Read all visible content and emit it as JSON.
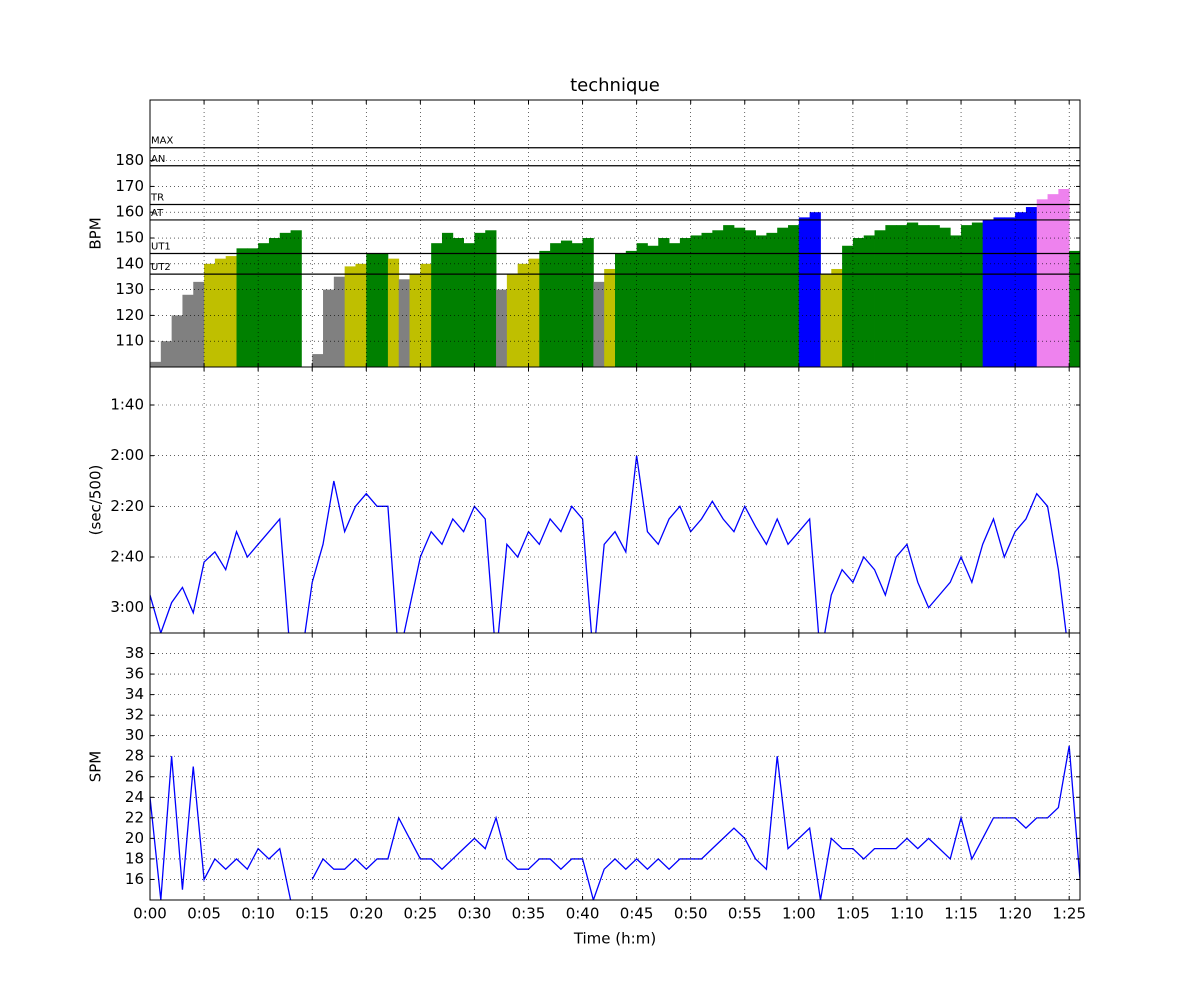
{
  "chart_data": {
    "type": "multi-panel",
    "title": "technique",
    "xlabel": "Time (h:m)",
    "x": [
      0,
      1,
      2,
      3,
      4,
      5,
      6,
      7,
      8,
      9,
      10,
      11,
      12,
      13,
      14,
      15,
      16,
      17,
      18,
      19,
      20,
      21,
      22,
      23,
      24,
      25,
      26,
      27,
      28,
      29,
      30,
      31,
      32,
      33,
      34,
      35,
      36,
      37,
      38,
      39,
      40,
      41,
      42,
      43,
      44,
      45,
      46,
      47,
      48,
      49,
      50,
      51,
      52,
      53,
      54,
      55,
      56,
      57,
      58,
      59,
      60,
      61,
      62,
      63,
      64,
      65,
      66,
      67,
      68,
      69,
      70,
      71,
      72,
      73,
      74,
      75,
      76,
      77,
      78,
      79,
      80,
      81,
      82,
      83,
      84,
      85,
      86
    ],
    "xlim": [
      0,
      86
    ],
    "xticks": [
      {
        "value": 0,
        "label": "0:00"
      },
      {
        "value": 5,
        "label": "0:05"
      },
      {
        "value": 10,
        "label": "0:10"
      },
      {
        "value": 15,
        "label": "0:15"
      },
      {
        "value": 20,
        "label": "0:20"
      },
      {
        "value": 25,
        "label": "0:25"
      },
      {
        "value": 30,
        "label": "0:30"
      },
      {
        "value": 35,
        "label": "0:35"
      },
      {
        "value": 40,
        "label": "0:40"
      },
      {
        "value": 45,
        "label": "0:45"
      },
      {
        "value": 50,
        "label": "0:50"
      },
      {
        "value": 55,
        "label": "0:55"
      },
      {
        "value": 60,
        "label": "1:00"
      },
      {
        "value": 65,
        "label": "1:05"
      },
      {
        "value": 70,
        "label": "1:10"
      },
      {
        "value": 75,
        "label": "1:15"
      },
      {
        "value": 80,
        "label": "1:20"
      },
      {
        "value": 85,
        "label": "1:25"
      }
    ],
    "grid": true,
    "panels": [
      {
        "type": "zone-area",
        "ylabel": "BPM",
        "ylim": [
          100,
          203.5
        ],
        "yticks": [
          110,
          120,
          130,
          140,
          150,
          160,
          170,
          180
        ],
        "zones": [
          {
            "name": "UT2",
            "value": 136
          },
          {
            "name": "UT1",
            "value": 144
          },
          {
            "name": "AT",
            "value": 157
          },
          {
            "name": "TR",
            "value": 163
          },
          {
            "name": "AN",
            "value": 178
          },
          {
            "name": "MAX",
            "value": 185
          }
        ],
        "zone_colors": [
          "#808080",
          "#bfbf00",
          "#008000",
          "#0000ff",
          "#ee82ee"
        ],
        "values": [
          102,
          110,
          120,
          128,
          133,
          140,
          142,
          143,
          146,
          146,
          148,
          150,
          152,
          153,
          null,
          105,
          130,
          135,
          139,
          140,
          144,
          144,
          142,
          134,
          136,
          140,
          148,
          152,
          150,
          148,
          152,
          153,
          130,
          136,
          140,
          142,
          145,
          148,
          149,
          148,
          150,
          133,
          138,
          144,
          145,
          148,
          147,
          150,
          148,
          150,
          151,
          152,
          153,
          155,
          154,
          153,
          151,
          152,
          154,
          155,
          158,
          160,
          136,
          138,
          147,
          150,
          151,
          153,
          155,
          155,
          156,
          155,
          155,
          154,
          151,
          155,
          156,
          157,
          158,
          158,
          160,
          162,
          165,
          167,
          169,
          145,
          null
        ]
      },
      {
        "type": "line",
        "ylabel": "(sec/500)",
        "color": "#0000ff",
        "ylim": [
          190,
          85
        ],
        "yticks": [
          {
            "value": 100,
            "label": "1:40"
          },
          {
            "value": 120,
            "label": "2:00"
          },
          {
            "value": 140,
            "label": "2:20"
          },
          {
            "value": 160,
            "label": "2:40"
          },
          {
            "value": 180,
            "label": "3:00"
          }
        ],
        "values": [
          175,
          190,
          178,
          172,
          182,
          162,
          158,
          165,
          150,
          160,
          155,
          150,
          145,
          200,
          200,
          170,
          155,
          130,
          150,
          140,
          135,
          140,
          140,
          200,
          180,
          160,
          150,
          155,
          145,
          150,
          140,
          145,
          200,
          155,
          160,
          150,
          155,
          145,
          150,
          140,
          145,
          200,
          155,
          150,
          158,
          120,
          150,
          155,
          145,
          140,
          150,
          145,
          138,
          145,
          150,
          140,
          148,
          155,
          145,
          155,
          150,
          145,
          200,
          175,
          165,
          170,
          160,
          165,
          175,
          160,
          155,
          170,
          180,
          175,
          170,
          160,
          170,
          155,
          145,
          160,
          150,
          145,
          135,
          140,
          165,
          200,
          null
        ]
      },
      {
        "type": "line",
        "ylabel": "SPM",
        "color": "#0000ff",
        "ylim": [
          14,
          40
        ],
        "yticks": [
          16,
          18,
          20,
          22,
          24,
          26,
          28,
          30,
          32,
          34,
          36,
          38
        ],
        "values": [
          24,
          14,
          28,
          15,
          27,
          16,
          18,
          17,
          18,
          17,
          19,
          18,
          19,
          14,
          null,
          16,
          18,
          17,
          17,
          18,
          17,
          18,
          18,
          22,
          20,
          18,
          18,
          17,
          18,
          19,
          20,
          19,
          22,
          18,
          17,
          17,
          18,
          18,
          17,
          18,
          18,
          14,
          17,
          18,
          17,
          18,
          17,
          18,
          17,
          18,
          18,
          18,
          19,
          20,
          21,
          20,
          18,
          17,
          28,
          19,
          20,
          21,
          14,
          20,
          19,
          19,
          18,
          19,
          19,
          19,
          20,
          19,
          20,
          19,
          18,
          22,
          18,
          20,
          22,
          22,
          22,
          21,
          22,
          22,
          23,
          29,
          16
        ]
      }
    ]
  }
}
